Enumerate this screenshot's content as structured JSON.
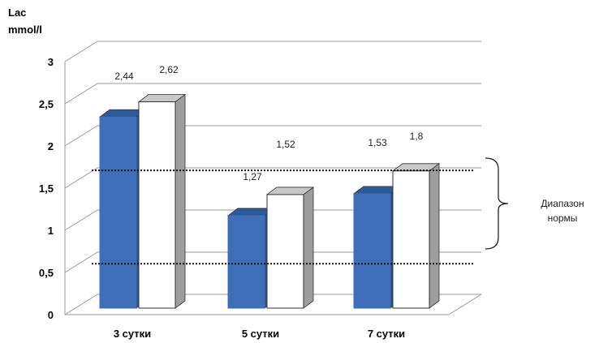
{
  "chart_data": {
    "type": "bar",
    "ylabel_lines": [
      "Lac",
      "mmol/l"
    ],
    "categories": [
      "3 сутки",
      "5 сутки",
      "7 сутки"
    ],
    "series": [
      {
        "values": [
          2.44,
          1.27,
          1.53
        ],
        "color": "#3E6FB8"
      },
      {
        "values": [
          2.62,
          1.52,
          1.8
        ],
        "color": "#FFFFFF"
      }
    ],
    "data_labels": [
      [
        "2,44",
        "1,27",
        "1,53"
      ],
      [
        "2,62",
        "1,52",
        "1,8"
      ]
    ],
    "yticks": [
      0,
      0.5,
      1,
      1.5,
      2,
      2.5,
      3
    ],
    "ytick_labels": [
      "0",
      "0,5",
      "1",
      "1,5",
      "2",
      "2,5",
      "3"
    ],
    "ylim": [
      0,
      3
    ],
    "grid": true,
    "reference_lines": [
      0.7,
      1.73
    ],
    "reference_note_lines": [
      "Диапазон",
      "нормы"
    ]
  }
}
